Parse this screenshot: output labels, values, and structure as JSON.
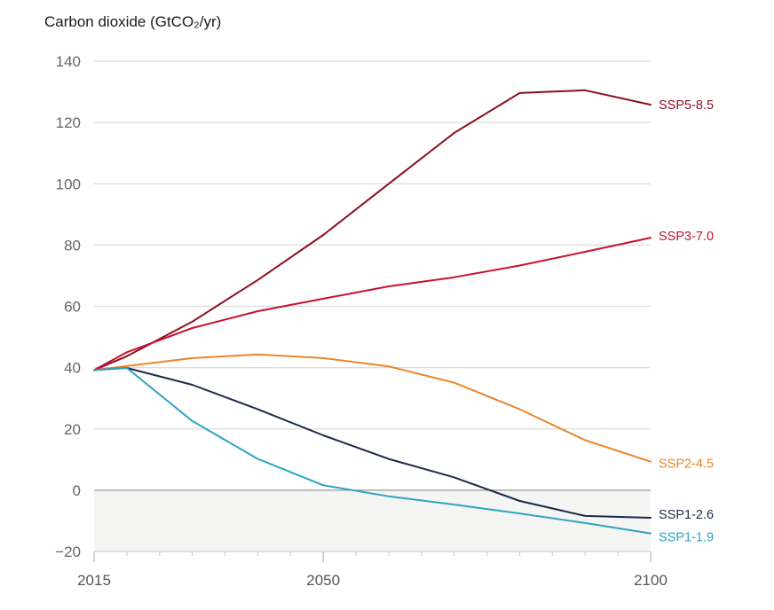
{
  "chart_data": {
    "type": "line",
    "title": "Carbon dioxide (GtCO₂/yr)",
    "xlabel": "",
    "ylabel": "Carbon dioxide (GtCO₂/yr)",
    "xlim": [
      2015,
      2100
    ],
    "ylim": [
      -20,
      140
    ],
    "x_ticks": [
      2015,
      2050,
      2100
    ],
    "x_tick_labels": [
      "2015",
      "2050",
      "2100"
    ],
    "x_minor_tick_step": 5,
    "y_ticks": [
      -20,
      0,
      20,
      40,
      60,
      80,
      100,
      120,
      140
    ],
    "y_tick_labels": [
      "−20",
      "0",
      "20",
      "40",
      "60",
      "80",
      "100",
      "120",
      "140"
    ],
    "grid": true,
    "negative_region_shaded": true,
    "legend": "direct-labels-right",
    "x": [
      2015,
      2020,
      2030,
      2040,
      2050,
      2060,
      2070,
      2080,
      2090,
      2100
    ],
    "series": [
      {
        "name": "SSP5-8.5",
        "color": "#8b0f22",
        "values": [
          39.2,
          43.7,
          55.0,
          68.6,
          83.3,
          100.0,
          116.6,
          129.6,
          130.5,
          125.8
        ]
      },
      {
        "name": "SSP3-7.0",
        "color": "#c8102e",
        "values": [
          39.2,
          45.0,
          52.9,
          58.4,
          62.5,
          66.5,
          69.5,
          73.3,
          77.8,
          82.4
        ]
      },
      {
        "name": "SSP2-4.5",
        "color": "#e8862a",
        "values": [
          39.2,
          40.5,
          43.1,
          44.3,
          43.1,
          40.4,
          35.1,
          26.4,
          16.3,
          9.3
        ]
      },
      {
        "name": "SSP1-2.6",
        "color": "#1b2a4a",
        "values": [
          39.2,
          39.9,
          34.4,
          26.4,
          17.9,
          10.2,
          4.2,
          -3.5,
          -8.4,
          -9.0
        ]
      },
      {
        "name": "SSP1-1.9",
        "color": "#2fa3c4",
        "values": [
          39.2,
          39.9,
          22.6,
          10.2,
          1.6,
          -2.0,
          -4.7,
          -7.6,
          -10.7,
          -14.1
        ]
      }
    ]
  }
}
